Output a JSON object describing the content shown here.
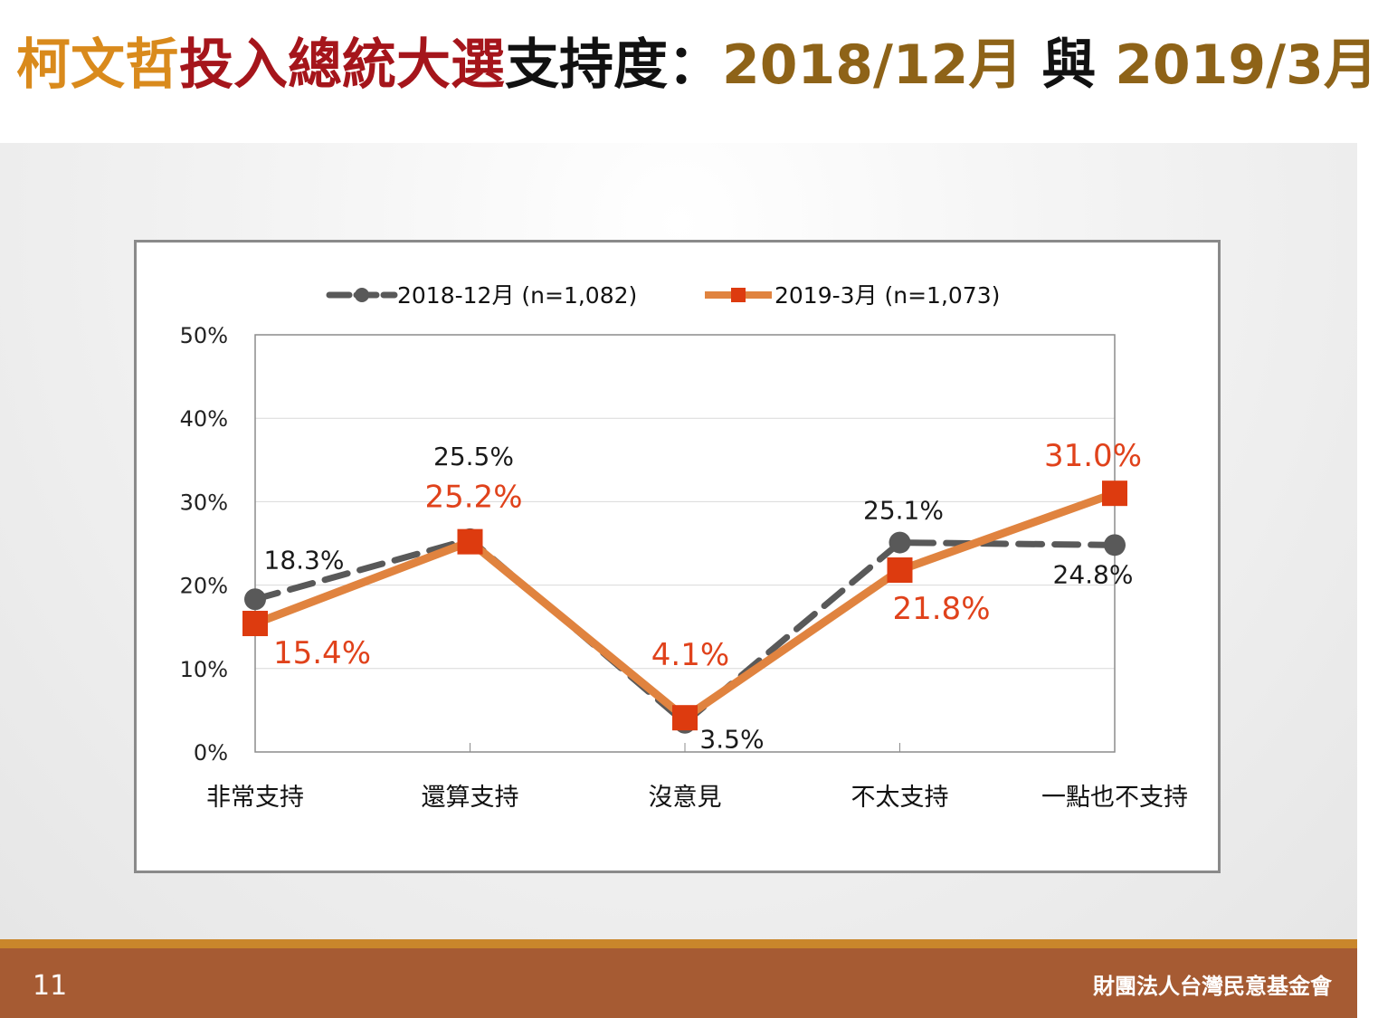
{
  "title": {
    "part1": "柯文哲",
    "part2": "投入總統大選",
    "part3": "支持度",
    "sep": "：",
    "part4": "2018/12月",
    "part5": " 與 ",
    "part6": "2019/3月"
  },
  "footer": {
    "page_number": "11",
    "organization": "財團法人台灣民意基金會"
  },
  "colors": {
    "series_2018": "#595959",
    "series_2019_line": "#e0833f",
    "series_2019_marker": "#dd3b0f",
    "label_2019": "#e0421b",
    "footer": "#a65b33"
  },
  "chart_data": {
    "type": "line",
    "categories": [
      "非常支持",
      "還算支持",
      "沒意見",
      "不太支持",
      "一點也不支持"
    ],
    "series": [
      {
        "name": "2018-12月 (n=1,082)",
        "values": [
          18.3,
          25.5,
          3.5,
          25.1,
          24.8
        ],
        "labels": [
          "18.3%",
          "25.5%",
          "3.5%",
          "25.1%",
          "24.8%"
        ],
        "style": "dashed",
        "marker": "circle"
      },
      {
        "name": "2019-3月 (n=1,073)",
        "values": [
          15.4,
          25.2,
          4.1,
          21.8,
          31.0
        ],
        "labels": [
          "15.4%",
          "25.2%",
          "4.1%",
          "21.8%",
          "31.0%"
        ],
        "style": "solid",
        "marker": "square"
      }
    ],
    "ylim": [
      0,
      50
    ],
    "yticks": [
      0,
      10,
      20,
      30,
      40,
      50
    ],
    "ytick_labels": [
      "0%",
      "10%",
      "20%",
      "30%",
      "40%",
      "50%"
    ],
    "grid": true,
    "legend_position": "top"
  }
}
